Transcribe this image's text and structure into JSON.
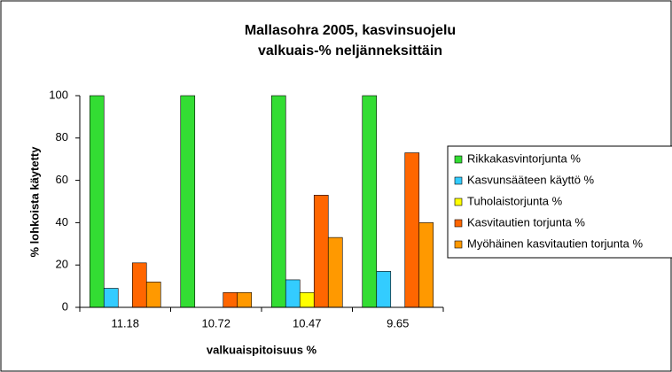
{
  "chart_data": {
    "type": "bar",
    "title": "Mallasohra 2005, kasvinsuojelu",
    "subtitle": "valkuais-% neljänneksittäin",
    "x_label": "valkuaispitoisuus %",
    "y_label": "% lohkoista käytetty",
    "categories": [
      "11.18",
      "10.72",
      "10.47",
      "9.65"
    ],
    "series": [
      {
        "name": "Rikkakasvintorjunta %",
        "color": "#33dd33",
        "values": [
          100,
          100,
          100,
          100
        ]
      },
      {
        "name": "Kasvunsääteen käyttö %",
        "color": "#33ccff",
        "values": [
          9,
          0,
          13,
          17
        ]
      },
      {
        "name": "Tuholaistorjunta %",
        "color": "#ffff00",
        "values": [
          0,
          0,
          7,
          0
        ]
      },
      {
        "name": "Kasvitautien torjunta %",
        "color": "#ff6600",
        "values": [
          21,
          7,
          53,
          73
        ]
      },
      {
        "name": "Myöhäinen kasvitautien torjunta %",
        "color": "#ff9900",
        "values": [
          12,
          7,
          33,
          40
        ]
      }
    ],
    "ylim": [
      0,
      100
    ],
    "yticks": [
      0,
      20,
      40,
      60,
      80,
      100
    ],
    "grid": false,
    "legend": "right"
  }
}
